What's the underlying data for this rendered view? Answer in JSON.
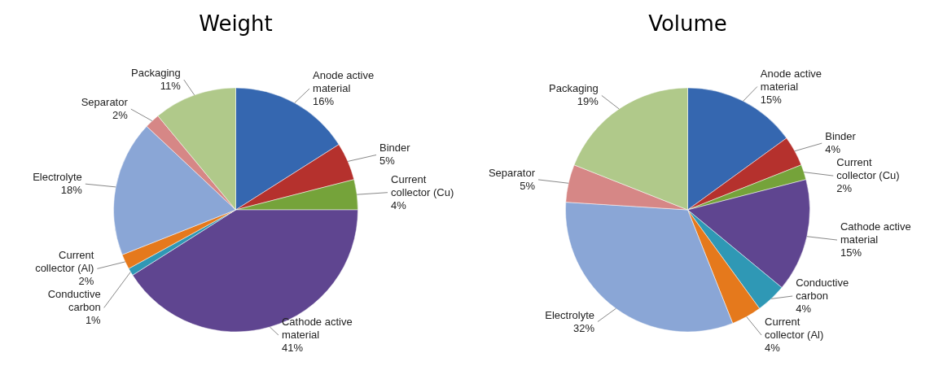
{
  "chart_data": [
    {
      "type": "pie",
      "title": "Weight",
      "categories": [
        "Anode active material",
        "Binder",
        "Current collector (Cu)",
        "Cathode active material",
        "Conductive carbon",
        "Current collector (Al)",
        "Electrolyte",
        "Separator",
        "Packaging"
      ],
      "values": [
        16,
        5,
        4,
        41,
        1,
        2,
        18,
        2,
        11
      ],
      "value_labels": [
        "16%",
        "5%",
        "4%",
        "41%",
        "1%",
        "2%",
        "18%",
        "2%",
        "11%"
      ],
      "colors": [
        "#3567b0",
        "#b5312d",
        "#75a33a",
        "#5f4590",
        "#2f98b5",
        "#e5791c",
        "#8aa6d6",
        "#d68786",
        "#b0c98a"
      ]
    },
    {
      "type": "pie",
      "title": "Volume",
      "categories": [
        "Anode active material",
        "Binder",
        "Current collector (Cu)",
        "Cathode active material",
        "Conductive carbon",
        "Current collector (Al)",
        "Electrolyte",
        "Separator",
        "Packaging"
      ],
      "values": [
        15,
        4,
        2,
        15,
        4,
        4,
        32,
        5,
        19
      ],
      "value_labels": [
        "15%",
        "4%",
        "2%",
        "15%",
        "4%",
        "4%",
        "32%",
        "5%",
        "19%"
      ],
      "colors": [
        "#3567b0",
        "#b5312d",
        "#75a33a",
        "#5f4590",
        "#2f98b5",
        "#e5791c",
        "#8aa6d6",
        "#d68786",
        "#b0c98a"
      ]
    }
  ]
}
